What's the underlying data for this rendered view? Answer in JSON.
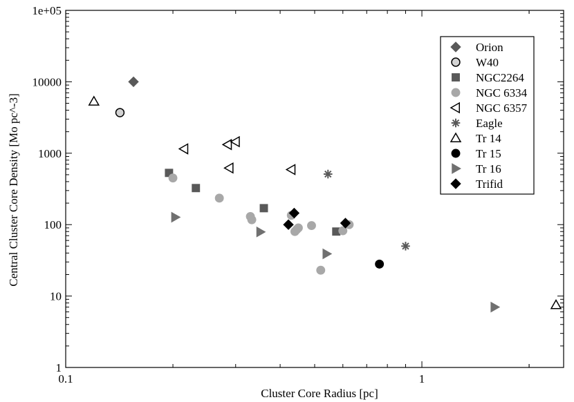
{
  "chart_data": {
    "type": "scatter",
    "title": "",
    "xlabel": "Cluster Core Radius [pc]",
    "ylabel": "Central Cluster Core Density [Mo pc^-3]",
    "xscale": "log",
    "yscale": "log",
    "xlim": [
      0.1,
      2.5
    ],
    "ylim": [
      1,
      100000
    ],
    "x_ticks": [
      {
        "value": 0.1,
        "label": "0.1"
      },
      {
        "value": 1,
        "label": "1"
      }
    ],
    "y_ticks": [
      {
        "value": 1,
        "label": "1"
      },
      {
        "value": 10,
        "label": "10"
      },
      {
        "value": 100,
        "label": "100"
      },
      {
        "value": 1000,
        "label": "1000"
      },
      {
        "value": 10000,
        "label": "10000"
      },
      {
        "value": 100000,
        "label": "1e+05"
      }
    ],
    "grid": false,
    "legend_position": "top-right",
    "series": [
      {
        "name": "Orion",
        "marker": "diamond",
        "filled": true,
        "color": "#595959",
        "points": [
          {
            "x": 0.155,
            "y": 10000
          }
        ]
      },
      {
        "name": "W40",
        "marker": "circle",
        "filled": true,
        "color": "#d3d3d3",
        "stroke": "#000000",
        "points": [
          {
            "x": 0.142,
            "y": 3700
          }
        ]
      },
      {
        "name": "NGC2264",
        "marker": "square",
        "filled": true,
        "color": "#595959",
        "points": [
          {
            "x": 0.195,
            "y": 530
          },
          {
            "x": 0.232,
            "y": 325
          },
          {
            "x": 0.36,
            "y": 170
          },
          {
            "x": 0.575,
            "y": 80
          }
        ]
      },
      {
        "name": "NGC 6334",
        "marker": "circle",
        "filled": true,
        "color": "#a8a8a8",
        "points": [
          {
            "x": 0.2,
            "y": 450
          },
          {
            "x": 0.27,
            "y": 235
          },
          {
            "x": 0.33,
            "y": 130
          },
          {
            "x": 0.333,
            "y": 117
          },
          {
            "x": 0.43,
            "y": 135
          },
          {
            "x": 0.44,
            "y": 80
          },
          {
            "x": 0.445,
            "y": 85
          },
          {
            "x": 0.45,
            "y": 90
          },
          {
            "x": 0.49,
            "y": 97
          },
          {
            "x": 0.52,
            "y": 23
          },
          {
            "x": 0.6,
            "y": 82
          },
          {
            "x": 0.625,
            "y": 100
          }
        ]
      },
      {
        "name": "NGC 6357",
        "marker": "triangle-left",
        "filled": false,
        "color": "#000000",
        "points": [
          {
            "x": 0.215,
            "y": 1150
          },
          {
            "x": 0.285,
            "y": 1320
          },
          {
            "x": 0.3,
            "y": 1450
          },
          {
            "x": 0.288,
            "y": 620
          },
          {
            "x": 0.43,
            "y": 590
          }
        ]
      },
      {
        "name": "Eagle",
        "marker": "asterisk",
        "filled": false,
        "color": "#595959",
        "points": [
          {
            "x": 0.545,
            "y": 510
          },
          {
            "x": 0.9,
            "y": 50
          }
        ]
      },
      {
        "name": "Tr 14",
        "marker": "triangle-up",
        "filled": false,
        "color": "#000000",
        "points": [
          {
            "x": 0.12,
            "y": 5300
          },
          {
            "x": 2.38,
            "y": 7.5
          }
        ]
      },
      {
        "name": "Tr 15",
        "marker": "circle",
        "filled": true,
        "color": "#000000",
        "points": [
          {
            "x": 0.76,
            "y": 28
          }
        ]
      },
      {
        "name": "Tr 16",
        "marker": "triangle-right",
        "filled": true,
        "color": "#707070",
        "points": [
          {
            "x": 0.203,
            "y": 127
          },
          {
            "x": 0.352,
            "y": 79
          },
          {
            "x": 0.54,
            "y": 39
          },
          {
            "x": 1.6,
            "y": 7
          }
        ]
      },
      {
        "name": "Trifid",
        "marker": "diamond",
        "filled": true,
        "color": "#000000",
        "points": [
          {
            "x": 0.422,
            "y": 100
          },
          {
            "x": 0.438,
            "y": 145
          },
          {
            "x": 0.61,
            "y": 105
          }
        ]
      }
    ]
  }
}
